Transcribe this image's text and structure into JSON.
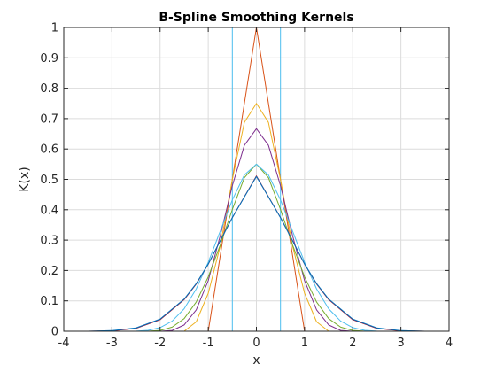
{
  "chart_data": {
    "type": "line",
    "title": "B-Spline Smoothing Kernels",
    "xlabel": "x",
    "ylabel": "K(x)",
    "xlim": [
      -4,
      4
    ],
    "ylim": [
      0,
      1
    ],
    "xticks": [
      -4,
      -3,
      -2,
      -1,
      0,
      1,
      2,
      3,
      4
    ],
    "yticks": [
      0,
      0.1,
      0.2,
      0.3,
      0.4,
      0.5,
      0.6,
      0.7,
      0.8,
      0.9,
      1
    ],
    "xtick_labels": [
      "-4",
      "-3",
      "-2",
      "-1",
      "0",
      "1",
      "2",
      "3",
      "4"
    ],
    "ytick_labels": [
      "0",
      "0.1",
      "0.2",
      "0.3",
      "0.4",
      "0.5",
      "0.6",
      "0.7",
      "0.8",
      "0.9",
      "1"
    ],
    "grid": true,
    "legend": "none",
    "series": [
      {
        "color": "#4DBEEE",
        "x": [
          -0.5,
          -0.5,
          0.5,
          0.5
        ],
        "y": [
          0,
          1,
          1,
          0
        ],
        "clip_top": true
      },
      {
        "color": "#D95319",
        "x": [
          -1,
          0,
          1
        ],
        "y": [
          0,
          1,
          0
        ]
      },
      {
        "color": "#EDB120",
        "x": [
          -1.5,
          -1.25,
          -1,
          -0.75,
          -0.5,
          -0.25,
          0,
          0.25,
          0.5,
          0.75,
          1,
          1.25,
          1.5
        ],
        "y": [
          0,
          0.031,
          0.125,
          0.281,
          0.5,
          0.6875,
          0.75,
          0.6875,
          0.5,
          0.281,
          0.125,
          0.031,
          0
        ]
      },
      {
        "color": "#7E2F8E",
        "x": [
          -2,
          -1.75,
          -1.5,
          -1.25,
          -1,
          -0.75,
          -0.5,
          -0.25,
          0,
          0.25,
          0.5,
          0.75,
          1,
          1.25,
          1.5,
          1.75,
          2
        ],
        "y": [
          0,
          0.0026,
          0.0208,
          0.0703,
          0.1667,
          0.3151,
          0.4792,
          0.612,
          0.6667,
          0.612,
          0.4792,
          0.3151,
          0.1667,
          0.0703,
          0.0208,
          0.0026,
          0
        ]
      },
      {
        "color": "#77AC30",
        "x": [
          -2.5,
          -2.25,
          -2,
          -1.75,
          -1.5,
          -1.25,
          -1,
          -0.75,
          -0.5,
          -0.25,
          0,
          0.25,
          0.5,
          0.75,
          1,
          1.25,
          1.5,
          1.75,
          2,
          2.25,
          2.5
        ],
        "y": [
          0,
          0.0002,
          0.0026,
          0.0135,
          0.0417,
          0.096,
          0.179,
          0.2842,
          0.401,
          0.5055,
          0.55,
          0.5055,
          0.401,
          0.2842,
          0.179,
          0.096,
          0.0417,
          0.0135,
          0.0026,
          0.0002,
          0
        ]
      },
      {
        "color": "#4DBEEE",
        "x": [
          -3,
          -2.75,
          -2.5,
          -2.25,
          -2,
          -1.75,
          -1.5,
          -1.25,
          -1,
          -0.75,
          -0.5,
          -0.25,
          0,
          0.25,
          0.5,
          0.75,
          1,
          1.25,
          1.5,
          1.75,
          2,
          2.25,
          2.5,
          2.75,
          3
        ],
        "y": [
          0,
          0.0,
          0.0003,
          0.0021,
          0.0083,
          0.0232,
          0.0516,
          0.097,
          0.1583,
          0.2299,
          0.3014,
          0.3586,
          0.3833,
          0.3586,
          0.3014,
          0.2299,
          0.1583,
          0.097,
          0.0516,
          0.0232,
          0.0083,
          0.0021,
          0.0003,
          0.0,
          0
        ],
        "scale_peak": 0.55
      },
      {
        "color": "#A2142F",
        "x": [
          -3.5,
          -3,
          -2.5,
          -2,
          -1.5,
          -1.25,
          -1,
          -0.75,
          -0.5,
          -0.25,
          0,
          0.25,
          0.5,
          0.75,
          1,
          1.25,
          1.5,
          2,
          2.5,
          3,
          3.5
        ],
        "y": [
          0,
          0.0013,
          0.0093,
          0.0381,
          0.1042,
          0.1554,
          0.2208,
          0.2983,
          0.3744,
          0.4427,
          0.5111,
          0.4427,
          0.3744,
          0.2983,
          0.2208,
          0.1554,
          0.1042,
          0.0381,
          0.0093,
          0.0013,
          0
        ]
      },
      {
        "color": "#0072BD",
        "x": [
          -3.5,
          -3,
          -2.5,
          -2,
          -1.5,
          -1.25,
          -1,
          -0.75,
          -0.5,
          -0.25,
          0,
          0.25,
          0.5,
          0.75,
          1,
          1.25,
          1.5,
          2,
          2.5,
          3,
          3.5
        ],
        "y": [
          0,
          0.002,
          0.011,
          0.04,
          0.106,
          0.157,
          0.221,
          0.298,
          0.374,
          0.442,
          0.509,
          0.442,
          0.374,
          0.298,
          0.221,
          0.157,
          0.106,
          0.04,
          0.011,
          0.002,
          0
        ]
      }
    ]
  }
}
